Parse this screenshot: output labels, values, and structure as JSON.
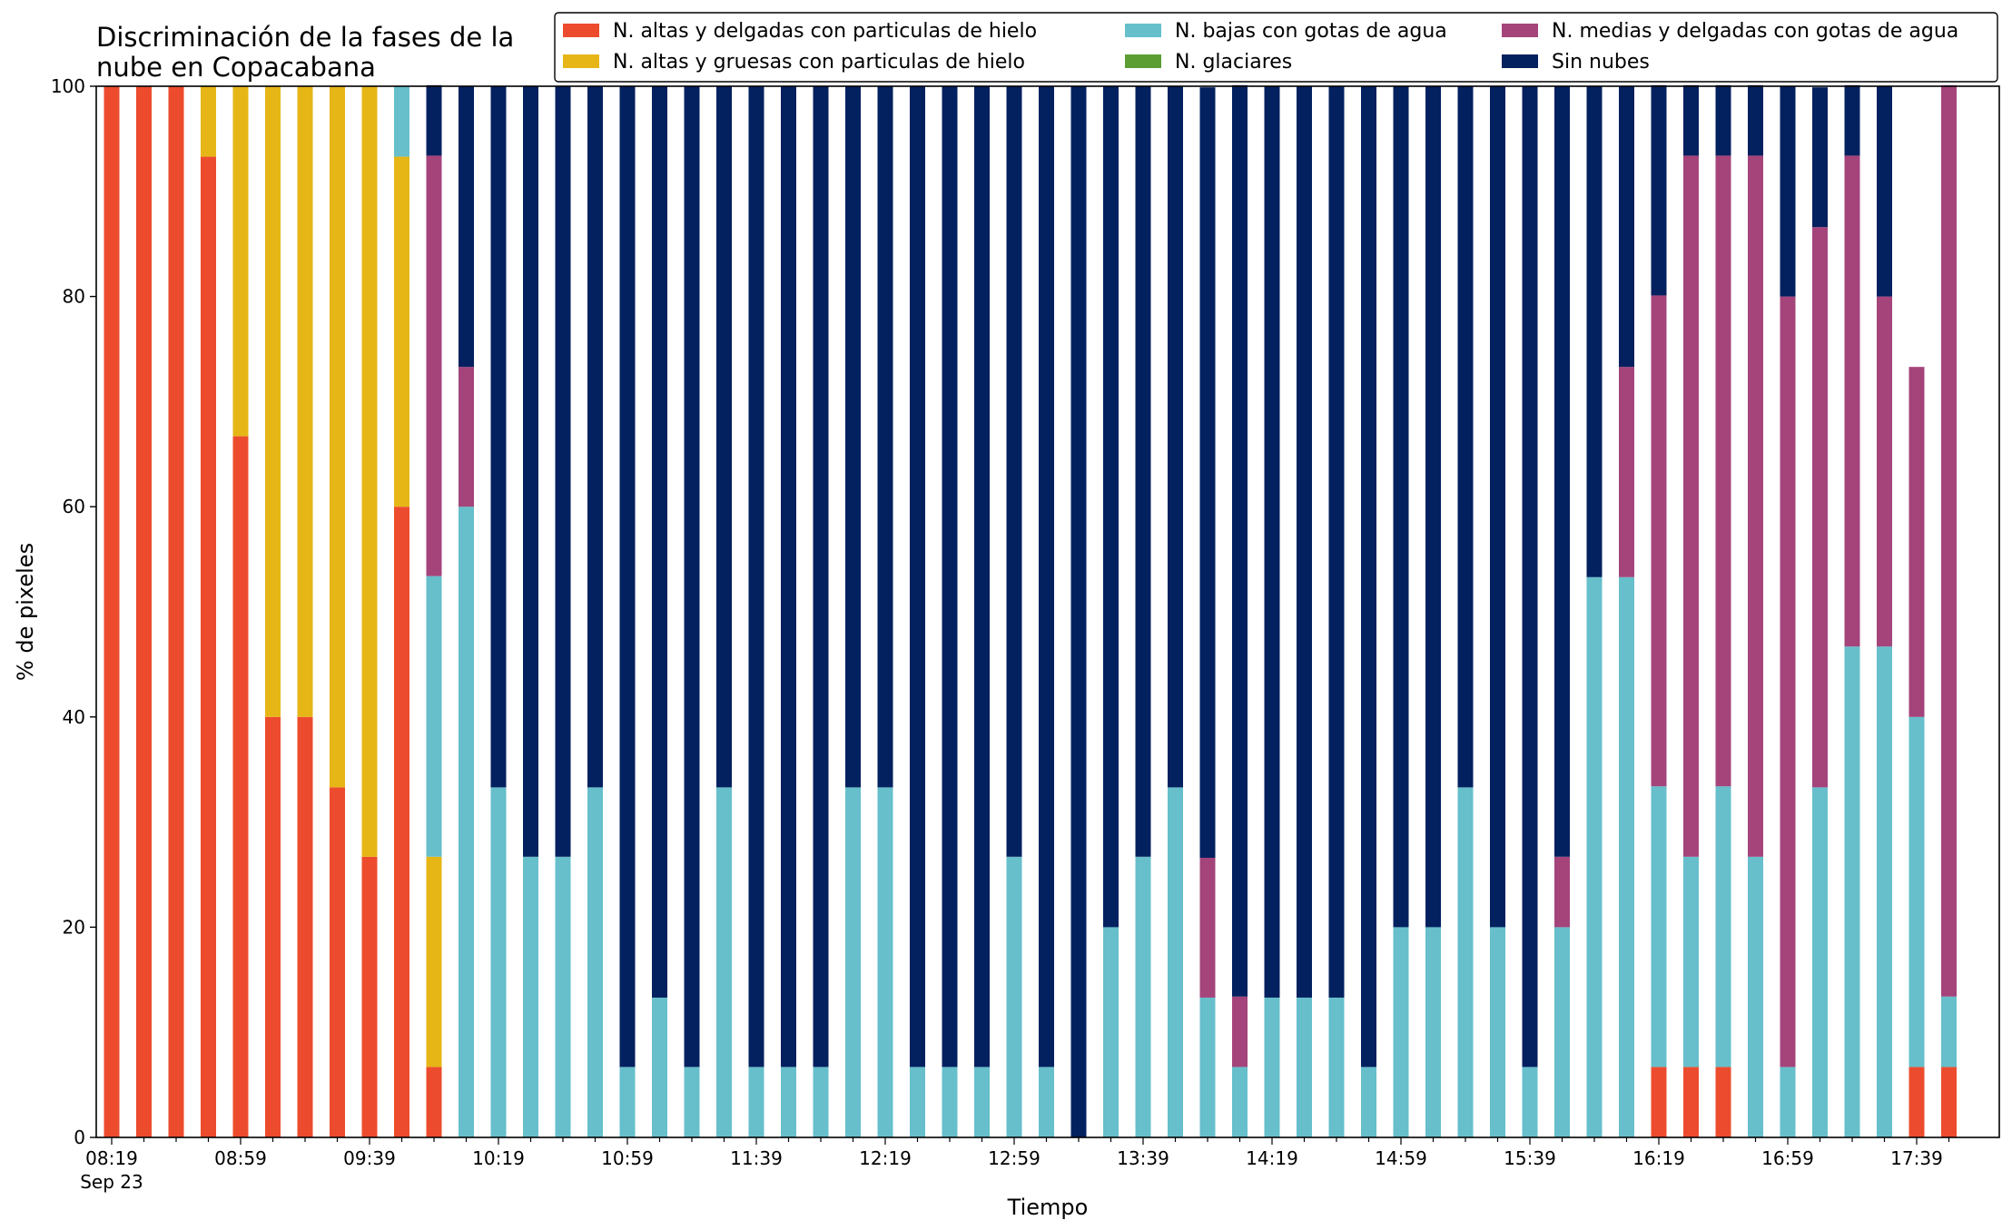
{
  "chart_data": {
    "type": "bar",
    "stacked": true,
    "title": "Discriminación de la fases de la nube en Copacabana",
    "title_lines": [
      "Discriminación de la fases de la",
      "nube en Copacabana"
    ],
    "xlabel": "Tiempo",
    "ylabel": "% de pixeles",
    "ylim": [
      0,
      100
    ],
    "yticks": [
      "0",
      "20",
      "40",
      "60",
      "80",
      "100"
    ],
    "xtick_labels": [
      "08:19",
      "08:59",
      "09:39",
      "10:19",
      "10:59",
      "11:39",
      "12:19",
      "12:59",
      "13:39",
      "14:19",
      "14:59",
      "15:39",
      "16:19",
      "16:59",
      "17:39"
    ],
    "xtick_sublabel": "Sep 23",
    "interval_minutes": 10,
    "legend_position": "top-right",
    "grid": false,
    "x": [
      "08:19",
      "08:29",
      "08:39",
      "08:49",
      "08:59",
      "09:09",
      "09:19",
      "09:29",
      "09:39",
      "09:49",
      "09:59",
      "10:09",
      "10:19",
      "10:29",
      "10:39",
      "10:49",
      "10:59",
      "11:09",
      "11:19",
      "11:29",
      "11:39",
      "11:49",
      "11:59",
      "12:09",
      "12:19",
      "12:29",
      "12:39",
      "12:49",
      "12:59",
      "13:09",
      "13:19",
      "13:29",
      "13:39",
      "13:49",
      "13:59",
      "14:09",
      "14:19",
      "14:29",
      "14:39",
      "14:49",
      "14:59",
      "15:09",
      "15:19",
      "15:29",
      "15:39",
      "15:49",
      "15:59",
      "16:09",
      "16:19",
      "16:29",
      "16:39",
      "16:49",
      "16:59",
      "17:09",
      "17:19",
      "17:29",
      "17:39",
      "17:49"
    ],
    "series": [
      {
        "name": "N. altas y delgadas con particulas de hielo",
        "color": "#ec4c2d",
        "values": [
          100,
          100,
          100,
          93.3,
          66.7,
          40,
          40,
          33.3,
          26.7,
          60,
          6.7,
          0,
          0,
          0,
          0,
          0,
          0,
          0,
          0,
          0,
          0,
          0,
          0,
          0,
          0,
          0,
          0,
          0,
          0,
          0,
          0,
          0,
          0,
          0,
          0,
          0,
          0,
          0,
          0,
          0,
          0,
          0,
          0,
          0,
          0,
          0,
          0,
          0,
          6.7,
          6.7,
          6.7,
          0,
          0,
          0,
          0,
          0,
          6.7,
          6.7
        ]
      },
      {
        "name": "N. altas y gruesas con particulas de hielo",
        "color": "#e6b616",
        "values": [
          0,
          0,
          0,
          6.7,
          33.3,
          60,
          60,
          66.7,
          73.3,
          33.3,
          20,
          0,
          0,
          0,
          0,
          0,
          0,
          0,
          0,
          0,
          0,
          0,
          0,
          0,
          0,
          0,
          0,
          0,
          0,
          0,
          0,
          0,
          0,
          0,
          0,
          0,
          0,
          0,
          0,
          0,
          0,
          0,
          0,
          0,
          0,
          0,
          0,
          0,
          0,
          0,
          0,
          0,
          0,
          0,
          0,
          0,
          0,
          0
        ]
      },
      {
        "name": "N. bajas con gotas de agua",
        "color": "#66bfcb",
        "values": [
          0,
          0,
          0,
          0,
          0,
          0,
          0,
          0,
          0,
          6.7,
          26.7,
          60,
          33.3,
          26.7,
          26.7,
          33.3,
          6.7,
          13.3,
          6.7,
          33.3,
          6.7,
          6.7,
          6.7,
          33.3,
          33.3,
          6.7,
          6.7,
          6.7,
          26.7,
          6.7,
          0,
          20,
          26.7,
          33.3,
          13.3,
          6.7,
          13.3,
          13.3,
          13.3,
          6.7,
          20,
          20,
          33.3,
          20,
          6.7,
          20,
          53.3,
          53.3,
          26.7,
          20,
          26.7,
          26.7,
          6.7,
          33.3,
          46.7,
          46.7,
          33.3,
          6.7
        ]
      },
      {
        "name": "N. glaciares",
        "color": "#5c9e32",
        "values": [
          0,
          0,
          0,
          0,
          0,
          0,
          0,
          0,
          0,
          0,
          0,
          0,
          0,
          0,
          0,
          0,
          0,
          0,
          0,
          0,
          0,
          0,
          0,
          0,
          0,
          0,
          0,
          0,
          0,
          0,
          0,
          0,
          0,
          0,
          0,
          0,
          0,
          0,
          0,
          0,
          0,
          0,
          0,
          0,
          0,
          0,
          0,
          0,
          0,
          0,
          0,
          0,
          0,
          0,
          0,
          0,
          0,
          0
        ]
      },
      {
        "name": "N. medias y delgadas con gotas de agua",
        "color": "#a4447b",
        "values": [
          0,
          0,
          0,
          0,
          0,
          0,
          0,
          0,
          0,
          0,
          40,
          13.3,
          0,
          0,
          0,
          0,
          0,
          0,
          0,
          0,
          0,
          0,
          0,
          0,
          0,
          0,
          0,
          0,
          0,
          0,
          0,
          0,
          0,
          0,
          13.3,
          6.7,
          0,
          0,
          0,
          0,
          0,
          0,
          0,
          0,
          0,
          6.7,
          0,
          20,
          46.7,
          66.7,
          60,
          66.7,
          73.3,
          53.3,
          46.7,
          33.3,
          33.3,
          86.7
        ]
      },
      {
        "name": "Sin nubes",
        "color": "#03205f",
        "values": [
          0,
          0,
          0,
          0,
          0,
          0,
          0,
          0,
          0,
          0,
          6.7,
          26.7,
          66.7,
          73.3,
          73.3,
          66.7,
          93.3,
          86.7,
          93.3,
          66.7,
          93.3,
          93.3,
          93.3,
          66.7,
          66.7,
          93.3,
          93.3,
          93.3,
          73.3,
          93.3,
          100,
          80,
          73.3,
          66.7,
          73.3,
          86.7,
          86.7,
          86.7,
          86.7,
          93.3,
          80,
          80,
          66.7,
          80,
          93.3,
          73.3,
          46.7,
          26.7,
          20,
          6.7,
          6.7,
          6.7,
          20,
          13.3,
          6.7,
          20,
          0,
          0
        ]
      }
    ]
  }
}
